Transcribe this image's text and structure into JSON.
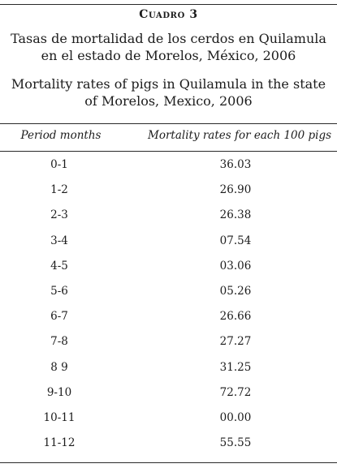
{
  "caption": {
    "label": "Cuadro 3",
    "title_es": "Tasas de mortalidad de los cerdos en Quilamula en el estado de Morelos, México, 2006",
    "title_en": "Mortality rates of pigs in Quilamula in the state of Morelos, Mexico, 2006"
  },
  "table": {
    "headers": {
      "period": "Period months",
      "rate": "Mortality rates for each 100 pigs"
    },
    "rows": [
      {
        "period": "0-1",
        "rate": "36.03"
      },
      {
        "period": "1-2",
        "rate": "26.90"
      },
      {
        "period": "2-3",
        "rate": "26.38"
      },
      {
        "period": "3-4",
        "rate": "07.54"
      },
      {
        "period": "4-5",
        "rate": "03.06"
      },
      {
        "period": "5-6",
        "rate": "05.26"
      },
      {
        "period": "6-7",
        "rate": "26.66"
      },
      {
        "period": "7-8",
        "rate": "27.27"
      },
      {
        "period": "8 9",
        "rate": "31.25"
      },
      {
        "period": "9-10",
        "rate": "72.72"
      },
      {
        "period": "10-11",
        "rate": "00.00"
      },
      {
        "period": "11-12",
        "rate": "55.55"
      }
    ]
  }
}
